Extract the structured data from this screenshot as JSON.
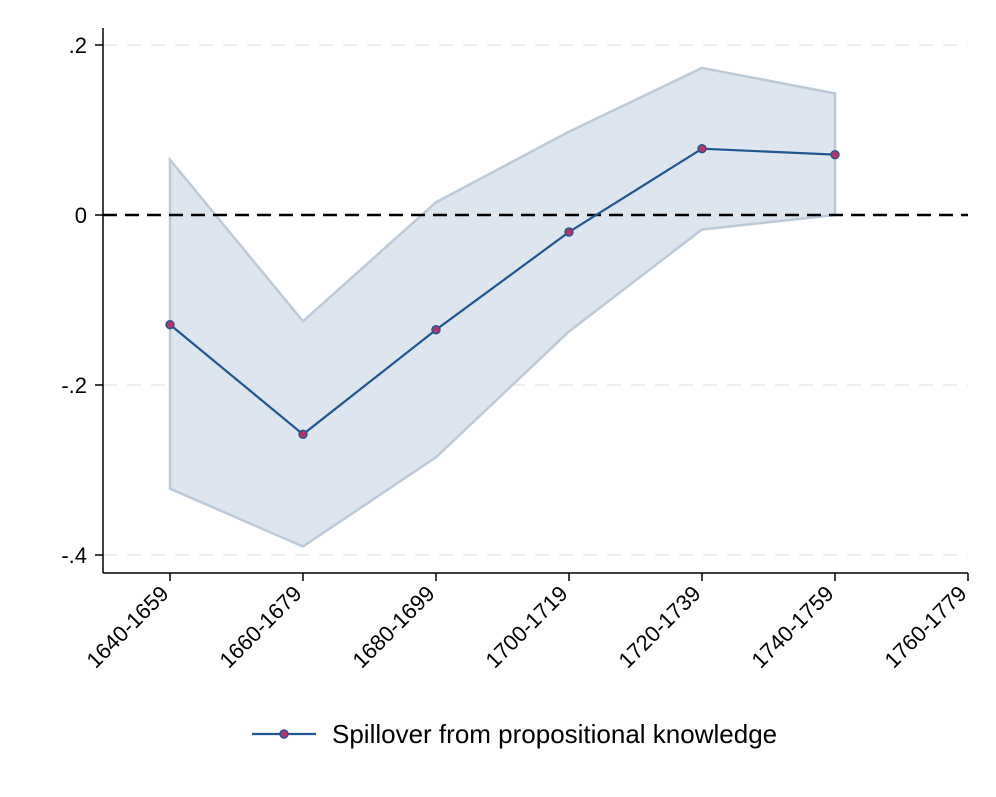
{
  "chart_data": {
    "type": "line",
    "title": "",
    "xlabel": "",
    "ylabel": "",
    "categories": [
      "1640-1659",
      "1660-1679",
      "1680-1699",
      "1700-1719",
      "1720-1739",
      "1740-1759",
      "1760-1779"
    ],
    "ylim": [
      -0.42,
      0.2
    ],
    "yticks": [
      0.2,
      0,
      -0.2,
      -0.4
    ],
    "ytick_labels": [
      ".2",
      "0",
      "-.2",
      "-.4"
    ],
    "grid": true,
    "reference_line": {
      "y": 0,
      "style": "dashed"
    },
    "series": [
      {
        "name": "Spillover from propositional knowledge",
        "values": [
          -0.129,
          -0.258,
          -0.135,
          -0.02,
          0.078,
          0.071,
          null
        ],
        "ci_upper": [
          0.065,
          -0.125,
          0.015,
          0.098,
          0.173,
          0.143,
          null
        ],
        "ci_lower": [
          -0.322,
          -0.39,
          -0.285,
          -0.137,
          -0.017,
          0.0,
          null
        ],
        "color": "#1f5591",
        "marker_color": "#b83265",
        "band_color": "#dde5ee",
        "band_edge_color": "#bcc9d7"
      }
    ],
    "legend": {
      "position": "bottom-center"
    }
  }
}
